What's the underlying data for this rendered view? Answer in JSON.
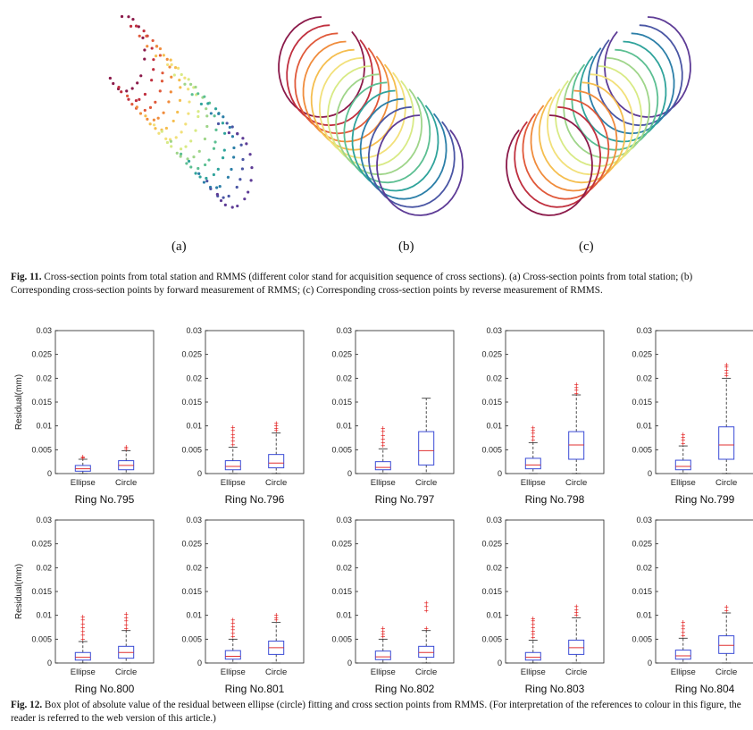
{
  "fig11": {
    "panel_labels": [
      "(a)",
      "(b)",
      "(c)"
    ],
    "caption_label": "Fig. 11.",
    "caption_text": " Cross-section points from total station and RMMS (different color stand for acquisition sequence of cross sections). (a) Cross-section points from total station; (b) Corresponding cross-section points by forward measurement of RMMS; (c) Corresponding cross-section points by reverse measurement of RMMS.",
    "ring_colors": [
      "#8b1a4a",
      "#c0303f",
      "#e0593a",
      "#f08c3c",
      "#f5be4f",
      "#f2e07a",
      "#d8ea85",
      "#9fd58a",
      "#5cbf92",
      "#2fa39b",
      "#2c7fa8",
      "#4a56a4",
      "#5e3c96"
    ]
  },
  "fig12": {
    "caption_label": "Fig. 12.",
    "caption_text": " Box plot of absolute value of the residual between ellipse (circle) fitting and cross section points from RMMS. (For interpretation of the references to colour in this figure, the reader is referred to the web version of this article.)"
  },
  "chart_data": [
    {
      "type": "box",
      "title": "Ring No.795",
      "ylabel": "Residual(mm)",
      "categories": [
        "Ellipse",
        "Circle"
      ],
      "ylim": [
        0,
        0.03
      ],
      "yticks": [
        "0",
        "0.005",
        "0.01",
        "0.015",
        "0.02",
        "0.025",
        "0.03"
      ],
      "boxes": [
        {
          "q1": 0.0005,
          "median": 0.001,
          "q3": 0.0017,
          "whisker_low": 0.0,
          "whisker_high": 0.003,
          "outliers": [
            0.0033,
            0.0035
          ]
        },
        {
          "q1": 0.0008,
          "median": 0.0017,
          "q3": 0.0027,
          "whisker_low": 0.0,
          "whisker_high": 0.0048,
          "outliers": [
            0.0052,
            0.0055
          ]
        }
      ]
    },
    {
      "type": "box",
      "title": "Ring No.796",
      "ylabel": "",
      "categories": [
        "Ellipse",
        "Circle"
      ],
      "ylim": [
        0,
        0.03
      ],
      "yticks": [
        "0",
        "0.005",
        "0.01",
        "0.015",
        "0.02",
        "0.025",
        "0.03"
      ],
      "boxes": [
        {
          "q1": 0.0008,
          "median": 0.0015,
          "q3": 0.0027,
          "whisker_low": 0.0,
          "whisker_high": 0.0055,
          "outliers": [
            0.006,
            0.0068,
            0.0075,
            0.0082,
            0.009,
            0.0097
          ]
        },
        {
          "q1": 0.0012,
          "median": 0.0022,
          "q3": 0.004,
          "whisker_low": 0.0,
          "whisker_high": 0.0085,
          "outliers": [
            0.009,
            0.0095,
            0.01,
            0.0105
          ]
        }
      ]
    },
    {
      "type": "box",
      "title": "Ring No.797",
      "ylabel": "",
      "categories": [
        "Ellipse",
        "Circle"
      ],
      "ylim": [
        0,
        0.03
      ],
      "yticks": [
        "0",
        "0.005",
        "0.01",
        "0.015",
        "0.02",
        "0.025",
        "0.03"
      ],
      "boxes": [
        {
          "q1": 0.0008,
          "median": 0.0013,
          "q3": 0.0025,
          "whisker_low": 0.0,
          "whisker_high": 0.0052,
          "outliers": [
            0.0058,
            0.0065,
            0.0072,
            0.008,
            0.0088,
            0.0095
          ]
        },
        {
          "q1": 0.0018,
          "median": 0.0048,
          "q3": 0.0088,
          "whisker_low": 0.0,
          "whisker_high": 0.0158,
          "outliers": []
        }
      ]
    },
    {
      "type": "box",
      "title": "Ring No.798",
      "ylabel": "",
      "categories": [
        "Ellipse",
        "Circle"
      ],
      "ylim": [
        0,
        0.03
      ],
      "yticks": [
        "0",
        "0.005",
        "0.01",
        "0.015",
        "0.02",
        "0.025",
        "0.03"
      ],
      "boxes": [
        {
          "q1": 0.001,
          "median": 0.0018,
          "q3": 0.0032,
          "whisker_low": 0.0,
          "whisker_high": 0.0065,
          "outliers": [
            0.007,
            0.0077,
            0.0084,
            0.009,
            0.0096
          ]
        },
        {
          "q1": 0.003,
          "median": 0.006,
          "q3": 0.0088,
          "whisker_low": 0.0,
          "whisker_high": 0.0165,
          "outliers": [
            0.0168,
            0.0175,
            0.018,
            0.0187
          ]
        }
      ]
    },
    {
      "type": "box",
      "title": "Ring No.799",
      "ylabel": "",
      "categories": [
        "Ellipse",
        "Circle"
      ],
      "ylim": [
        0,
        0.03
      ],
      "yticks": [
        "0",
        "0.005",
        "0.01",
        "0.015",
        "0.02",
        "0.025",
        "0.03"
      ],
      "boxes": [
        {
          "q1": 0.0008,
          "median": 0.0015,
          "q3": 0.0028,
          "whisker_low": 0.0,
          "whisker_high": 0.0058,
          "outliers": [
            0.0063,
            0.007,
            0.0076,
            0.0082
          ]
        },
        {
          "q1": 0.003,
          "median": 0.006,
          "q3": 0.0098,
          "whisker_low": 0.0,
          "whisker_high": 0.02,
          "outliers": [
            0.0205,
            0.021,
            0.0217,
            0.0223,
            0.0228
          ]
        }
      ]
    },
    {
      "type": "box",
      "title": "Ring No.800",
      "ylabel": "Residual(mm)",
      "categories": [
        "Ellipse",
        "Circle"
      ],
      "ylim": [
        0,
        0.03
      ],
      "yticks": [
        "0",
        "0.005",
        "0.01",
        "0.015",
        "0.02",
        "0.025",
        "0.03"
      ],
      "boxes": [
        {
          "q1": 0.0006,
          "median": 0.0012,
          "q3": 0.0022,
          "whisker_low": 0.0,
          "whisker_high": 0.0045,
          "outliers": [
            0.005,
            0.0058,
            0.0066,
            0.0074,
            0.0082,
            0.009,
            0.0097
          ]
        },
        {
          "q1": 0.001,
          "median": 0.0022,
          "q3": 0.0035,
          "whisker_low": 0.0,
          "whisker_high": 0.0068,
          "outliers": [
            0.0072,
            0.008,
            0.0088,
            0.0095,
            0.0102
          ]
        }
      ]
    },
    {
      "type": "box",
      "title": "Ring No.801",
      "ylabel": "",
      "categories": [
        "Ellipse",
        "Circle"
      ],
      "ylim": [
        0,
        0.03
      ],
      "yticks": [
        "0",
        "0.005",
        "0.01",
        "0.015",
        "0.02",
        "0.025",
        "0.03"
      ],
      "boxes": [
        {
          "q1": 0.0008,
          "median": 0.0014,
          "q3": 0.0026,
          "whisker_low": 0.0,
          "whisker_high": 0.005,
          "outliers": [
            0.0055,
            0.0062,
            0.0069,
            0.0076,
            0.0083,
            0.009
          ]
        },
        {
          "q1": 0.0018,
          "median": 0.0032,
          "q3": 0.0046,
          "whisker_low": 0.0,
          "whisker_high": 0.0085,
          "outliers": [
            0.009,
            0.0095,
            0.01
          ]
        }
      ]
    },
    {
      "type": "box",
      "title": "Ring No.802",
      "ylabel": "",
      "categories": [
        "Ellipse",
        "Circle"
      ],
      "ylim": [
        0,
        0.03
      ],
      "yticks": [
        "0",
        "0.005",
        "0.01",
        "0.015",
        "0.02",
        "0.025",
        "0.03"
      ],
      "boxes": [
        {
          "q1": 0.0007,
          "median": 0.0013,
          "q3": 0.0025,
          "whisker_low": 0.0,
          "whisker_high": 0.005,
          "outliers": [
            0.0055,
            0.006,
            0.0066,
            0.0072
          ]
        },
        {
          "q1": 0.0012,
          "median": 0.0022,
          "q3": 0.0035,
          "whisker_low": 0.0,
          "whisker_high": 0.0068,
          "outliers": [
            0.0072,
            0.011,
            0.0118,
            0.0126
          ]
        }
      ]
    },
    {
      "type": "box",
      "title": "Ring No.803",
      "ylabel": "",
      "categories": [
        "Ellipse",
        "Circle"
      ],
      "ylim": [
        0,
        0.03
      ],
      "yticks": [
        "0",
        "0.005",
        "0.01",
        "0.015",
        "0.02",
        "0.025",
        "0.03"
      ],
      "boxes": [
        {
          "q1": 0.0006,
          "median": 0.0012,
          "q3": 0.0022,
          "whisker_low": 0.0,
          "whisker_high": 0.0048,
          "outliers": [
            0.0053,
            0.006,
            0.0067,
            0.0074,
            0.0081,
            0.0088,
            0.0093
          ]
        },
        {
          "q1": 0.0018,
          "median": 0.0032,
          "q3": 0.0048,
          "whisker_low": 0.0,
          "whisker_high": 0.0095,
          "outliers": [
            0.01,
            0.0106,
            0.0112,
            0.0118
          ]
        }
      ]
    },
    {
      "type": "box",
      "title": "Ring No.804",
      "ylabel": "",
      "categories": [
        "Ellipse",
        "Circle"
      ],
      "ylim": [
        0,
        0.03
      ],
      "yticks": [
        "0",
        "0.005",
        "0.01",
        "0.015",
        "0.02",
        "0.025",
        "0.03"
      ],
      "boxes": [
        {
          "q1": 0.0008,
          "median": 0.0015,
          "q3": 0.0027,
          "whisker_low": 0.0,
          "whisker_high": 0.0052,
          "outliers": [
            0.0057,
            0.0064,
            0.0071,
            0.0078,
            0.0085
          ]
        },
        {
          "q1": 0.002,
          "median": 0.0037,
          "q3": 0.0057,
          "whisker_low": 0.0,
          "whisker_high": 0.0105,
          "outliers": [
            0.011,
            0.0117
          ]
        }
      ]
    }
  ]
}
